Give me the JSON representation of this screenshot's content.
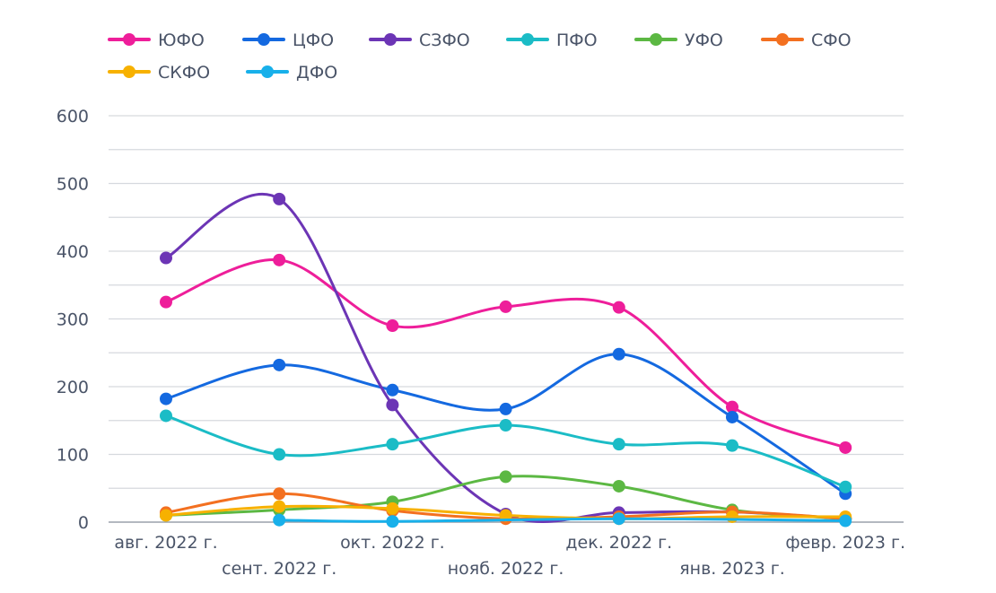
{
  "chart_data": {
    "type": "line",
    "title": "",
    "xlabel": "",
    "ylabel": "",
    "ylim": [
      0,
      600
    ],
    "yticks": [
      0,
      100,
      200,
      300,
      400,
      500,
      600
    ],
    "grid": true,
    "legend_position": "top-left",
    "categories": [
      "авг. 2022 г.",
      "сент. 2022 г.",
      "окт. 2022 г.",
      "нояб. 2022 г.",
      "дек. 2022 г.",
      "янв. 2023 г.",
      "февр. 2023 г."
    ],
    "series": [
      {
        "name": "ЮФО",
        "color": "#ee1e9a",
        "values": [
          325,
          387,
          290,
          318,
          317,
          170,
          110
        ]
      },
      {
        "name": "ЦФО",
        "color": "#1469e0",
        "values": [
          182,
          232,
          195,
          167,
          248,
          155,
          42
        ]
      },
      {
        "name": "СЗФО",
        "color": "#6c35b5",
        "values": [
          390,
          477,
          173,
          12,
          14,
          15,
          5
        ]
      },
      {
        "name": "ПФО",
        "color": "#1bbcc6",
        "values": [
          157,
          100,
          115,
          143,
          115,
          113,
          52
        ]
      },
      {
        "name": "УФО",
        "color": "#5cb843",
        "values": [
          10,
          18,
          30,
          67,
          53,
          18,
          5
        ]
      },
      {
        "name": "СФО",
        "color": "#f37020",
        "values": [
          14,
          42,
          17,
          5,
          8,
          15,
          5
        ]
      },
      {
        "name": "СКФО",
        "color": "#f7b100",
        "values": [
          10,
          23,
          20,
          10,
          5,
          8,
          8
        ]
      },
      {
        "name": "ДФО",
        "color": "#18b0ea",
        "values": [
          null,
          3,
          1,
          null,
          5,
          null,
          2
        ]
      }
    ]
  }
}
